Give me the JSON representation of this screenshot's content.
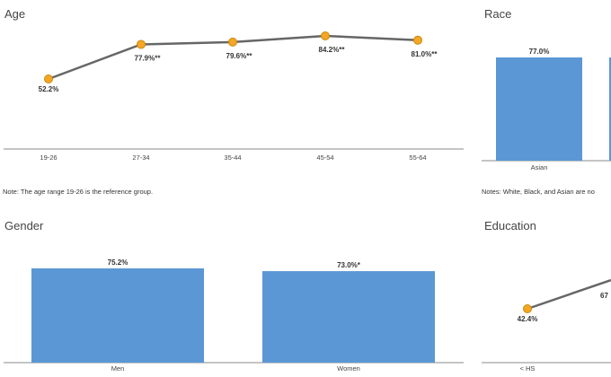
{
  "colors": {
    "line": "#666666",
    "marker": "#f5a623",
    "marker_stroke": "#c88a10",
    "bar": "#5b97d5",
    "axis": "#888888"
  },
  "chart_data": [
    {
      "type": "line",
      "title": "Age",
      "categories": [
        "19-26",
        "27-34",
        "35-44",
        "45-54",
        "55-64"
      ],
      "values": [
        52.2,
        77.9,
        79.6,
        84.2,
        81.0
      ],
      "data_labels": [
        "52.2%",
        "77.9%**",
        "79.6%**",
        "84.2%**",
        "81.0%**"
      ],
      "note": "Note: The age range 19-26 is the reference group."
    },
    {
      "type": "bar",
      "title": "Race",
      "categories": [
        "Asian"
      ],
      "values": [
        77.0
      ],
      "data_labels": [
        "77.0%"
      ],
      "note": "Notes: White, Black, and Asian are no"
    },
    {
      "type": "bar",
      "title": "Gender",
      "categories": [
        "Men",
        "Women"
      ],
      "values": [
        75.2,
        73.0
      ],
      "data_labels": [
        "75.2%",
        "73.0%*"
      ]
    },
    {
      "type": "line",
      "title": "Education",
      "categories": [
        "< HS"
      ],
      "values": [
        42.4
      ],
      "data_labels": [
        "42.4%"
      ],
      "partial_next_label": "67"
    }
  ]
}
